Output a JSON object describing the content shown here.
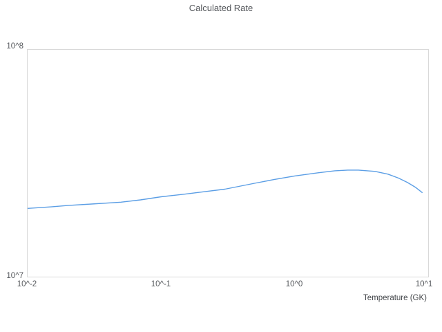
{
  "title": "Calculated Rate",
  "colors": {
    "line": "#5b9ee5",
    "plot_border": "#d9d9d9",
    "text": "#54575b",
    "background": "#ffffff"
  },
  "chart_data": {
    "type": "line",
    "title": "Calculated Rate",
    "xlabel": "Temperature (GK)",
    "ylabel": "",
    "x_scale": "log",
    "y_scale": "log",
    "xlim": [
      0.01,
      10
    ],
    "ylim": [
      10000000,
      100000000
    ],
    "x_tick_labels": [
      "10^-2",
      "10^-1",
      "10^0",
      "10^1"
    ],
    "y_tick_labels": [
      "10^7",
      "10^8"
    ],
    "grid": false,
    "legend_position": "none",
    "series": [
      {
        "name": "Calculated Rate",
        "color": "#5b9ee5",
        "x": [
          0.01,
          0.015,
          0.02,
          0.03,
          0.05,
          0.07,
          0.1,
          0.15,
          0.2,
          0.3,
          0.5,
          0.7,
          1.0,
          1.5,
          2.0,
          2.5,
          3.0,
          4.0,
          5.0,
          6.0,
          7.0,
          8.0,
          9.0
        ],
        "y": [
          20000000,
          20300000,
          20600000,
          20900000,
          21300000,
          21800000,
          22500000,
          23100000,
          23600000,
          24300000,
          25800000,
          26800000,
          27800000,
          28700000,
          29300000,
          29500000,
          29500000,
          29100000,
          28300000,
          27200000,
          26000000,
          24800000,
          23500000
        ]
      }
    ]
  }
}
